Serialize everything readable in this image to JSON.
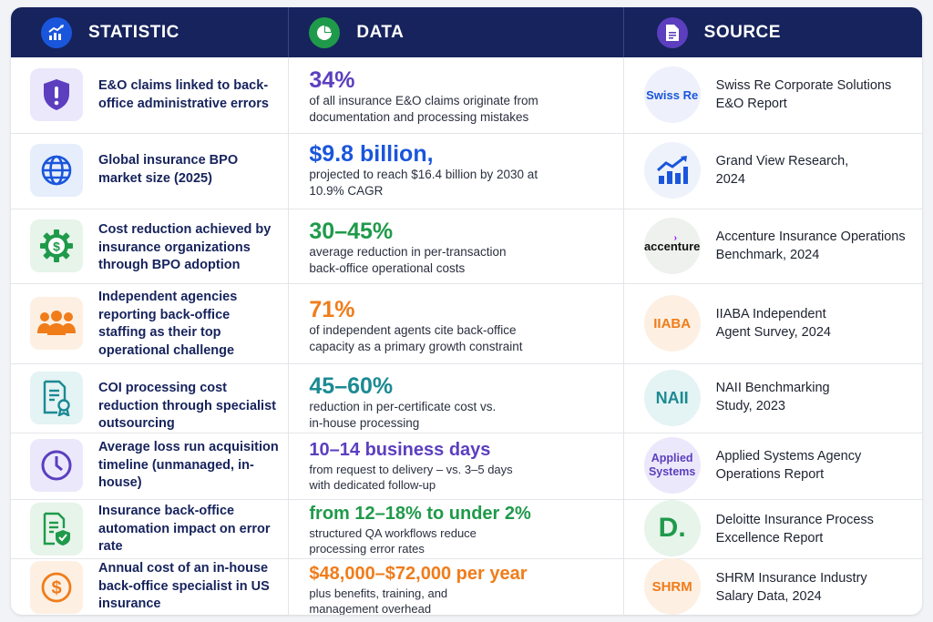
{
  "header": {
    "statistic": "STATISTIC",
    "data": "DATA",
    "source": "SOURCE"
  },
  "colors": {
    "navy": "#16235c",
    "blue": "#1a56db",
    "green": "#1f9a4a",
    "orange": "#f07c1a",
    "teal": "#1b8a93",
    "purple": "#5b3fbf"
  },
  "rows": [
    {
      "icon": "shield-alert-icon",
      "statistic": "E&O claims linked to back-office administrative errors",
      "value": "34%",
      "value_color": "#5b3fbf",
      "description": "of all insurance E&O claims originate from documentation and processing mistakes",
      "source_logo": "Swiss Re",
      "source": "Swiss Re Corporate Solutions E&O Report"
    },
    {
      "icon": "globe-icon",
      "statistic": "Global insurance BPO market size (2025)",
      "value": "$9.8 billion,",
      "value_color": "#1a56db",
      "description": "projected to reach $16.4 billion by 2030 at 10.9% CAGR",
      "source_logo": "growth-chart-icon",
      "source": "Grand View Research, 2024"
    },
    {
      "icon": "gear-dollar-icon",
      "statistic": "Cost reduction achieved by insurance organizations through BPO adoption",
      "value": "30–45%",
      "value_color": "#1f9a4a",
      "description": "average reduction in per-transaction back-office operational costs",
      "source_logo": "accenture",
      "source": "Accenture Insurance Operations Benchmark, 2024"
    },
    {
      "icon": "team-icon",
      "statistic": "Independent agencies reporting back-office staffing as their top operational challenge",
      "value": "71%",
      "value_color": "#f07c1a",
      "description": "of independent agents cite back-office capacity as a primary growth constraint",
      "source_logo": "IIABA",
      "source": "IIABA Independent Agent Survey, 2024"
    },
    {
      "icon": "certificate-icon",
      "statistic": "COI processing cost reduction through specialist outsourcing",
      "value": "45–60%",
      "value_color": "#1b8a93",
      "description": "reduction in per-certificate cost vs. in-house processing",
      "source_logo": "NAII",
      "source": "NAII Benchmarking Study, 2023"
    },
    {
      "icon": "clock-icon",
      "statistic": "Average loss run acquisition timeline (unmanaged, in-house)",
      "value": "10–14 business days",
      "value_color": "#5b3fbf",
      "description": "from request to delivery – vs. 3–5 days with dedicated follow-up",
      "source_logo": "Applied Systems",
      "source": "Applied Systems Agency Operations Report"
    },
    {
      "icon": "document-check-icon",
      "statistic": "Insurance back-office automation impact on error rate",
      "value": "from 12–18% to under 2%",
      "value_color": "#1f9a4a",
      "description": "structured QA workflows reduce processing error rates",
      "source_logo": "D.",
      "source": "Deloitte Insurance Process Excellence Report"
    },
    {
      "icon": "dollar-coin-icon",
      "statistic": "Annual cost of an in-house back-office specialist in US insurance",
      "value": "$48,000–$72,000 per year",
      "value_color": "#f07c1a",
      "description": "plus benefits, training, and management overhead",
      "source_logo": "SHRM",
      "source": "SHRM Insurance Industry Salary Data, 2024"
    }
  ]
}
